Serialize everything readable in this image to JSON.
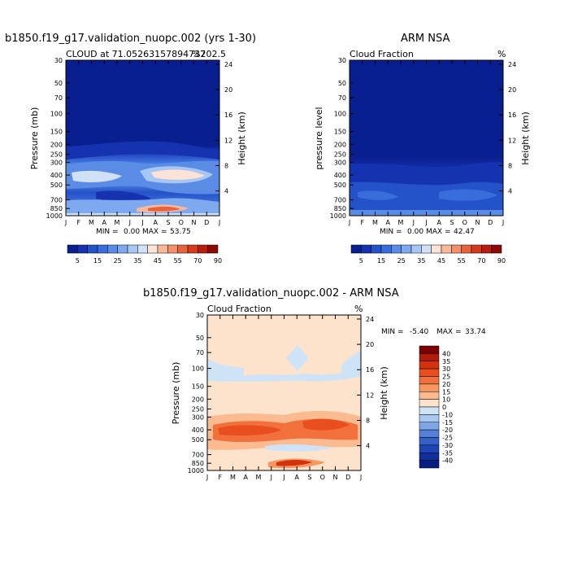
{
  "title_top_left": "b1850.f19_g17.validation_nuopc.002 (yrs 1-30)",
  "title_top_right": "ARM NSA",
  "title_bottom": "b1850.f19_g17.validation_nuopc.002 - ARM NSA",
  "chart_data": [
    {
      "type": "heatmap",
      "name": "model-cloud",
      "subtitle_left": "CLOUD at 71.05263157894737",
      "subtitle_right": "%202.5",
      "ylabel": "Pressure (mb)",
      "ylabel_right": "Height (km)",
      "x_ticks": [
        "J",
        "F",
        "M",
        "A",
        "M",
        "J",
        "J",
        "A",
        "S",
        "O",
        "N",
        "D",
        "J"
      ],
      "y_ticks": [
        "30",
        "50",
        "70",
        "100",
        "150",
        "200",
        "250",
        "300",
        "400",
        "500",
        "700",
        "850",
        "1000"
      ],
      "height_ticks": [
        "24",
        "20",
        "16",
        "12",
        "8",
        "4"
      ],
      "stats": {
        "min_label": "MIN =",
        "min": "0.00",
        "max_label": "MAX =",
        "max": "53.75"
      },
      "colorbar": {
        "levels": [
          "5",
          "15",
          "25",
          "35",
          "45",
          "55",
          "70",
          "90"
        ],
        "colors": [
          "#0a1f8f",
          "#1533b0",
          "#2452c8",
          "#3a6ddc",
          "#5a8ce6",
          "#7fa9ee",
          "#a8c6f3",
          "#cfe0f7",
          "#fde3d6",
          "#f7b99a",
          "#f1906a",
          "#e8623d",
          "#d63a1d",
          "#b81d0e",
          "#8c0a06"
        ]
      }
    },
    {
      "type": "heatmap",
      "name": "obs-cloud",
      "subtitle_left": "Cloud Fraction",
      "subtitle_right": "%",
      "ylabel": "pressure level",
      "ylabel_right": "Height (km)",
      "x_ticks": [
        "J",
        "F",
        "M",
        "A",
        "M",
        "J",
        "J",
        "A",
        "S",
        "O",
        "N",
        "D",
        "J"
      ],
      "y_ticks": [
        "30",
        "50",
        "70",
        "100",
        "150",
        "200",
        "250",
        "300",
        "400",
        "500",
        "700",
        "850",
        "1000"
      ],
      "height_ticks": [
        "24",
        "20",
        "16",
        "12",
        "8",
        "4"
      ],
      "stats": {
        "min_label": "MIN =",
        "min": "0.00",
        "max_label": "MAX =",
        "max": "42.47"
      },
      "colorbar": {
        "levels": [
          "5",
          "15",
          "25",
          "35",
          "45",
          "55",
          "70",
          "90"
        ],
        "colors": [
          "#0a1f8f",
          "#1533b0",
          "#2452c8",
          "#3a6ddc",
          "#5a8ce6",
          "#7fa9ee",
          "#a8c6f3",
          "#cfe0f7",
          "#fde3d6",
          "#f7b99a",
          "#f1906a",
          "#e8623d",
          "#d63a1d",
          "#b81d0e",
          "#8c0a06"
        ]
      }
    },
    {
      "type": "heatmap",
      "name": "difference",
      "subtitle_left": "Cloud Fraction",
      "subtitle_right": "%",
      "ylabel": "Pressure (mb)",
      "ylabel_right": "Height (km)",
      "x_ticks": [
        "J",
        "F",
        "M",
        "A",
        "M",
        "J",
        "J",
        "A",
        "S",
        "O",
        "N",
        "D",
        "J"
      ],
      "y_ticks": [
        "30",
        "50",
        "70",
        "100",
        "150",
        "200",
        "250",
        "300",
        "400",
        "500",
        "700",
        "850",
        "1000"
      ],
      "height_ticks": [
        "24",
        "20",
        "16",
        "12",
        "8",
        "4"
      ],
      "stats": {
        "min_label": "MIN =",
        "min": "-5.40",
        "max_label": "MAX =",
        "max": "33.74"
      },
      "colorbar": {
        "levels": [
          "40",
          "35",
          "30",
          "25",
          "20",
          "15",
          "10",
          "0",
          "-10",
          "-15",
          "-20",
          "-25",
          "-30",
          "-35",
          "-40"
        ],
        "colors": [
          "#7a0000",
          "#b01a08",
          "#d2320e",
          "#e84e1e",
          "#f2703c",
          "#f7965e",
          "#fbba90",
          "#fde3cc",
          "#cfe3f7",
          "#a8c8f0",
          "#7ea6e6",
          "#5580d8",
          "#3461c8",
          "#1d45b4",
          "#0e2f9c",
          "#081e80"
        ]
      }
    }
  ]
}
